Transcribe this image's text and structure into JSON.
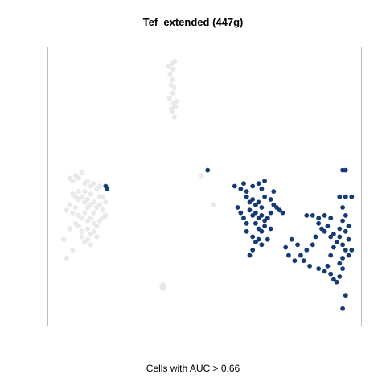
{
  "chart_data": {
    "type": "scatter",
    "title": "Tef_extended (447g)",
    "xlabel": "Cells with AUC > 0.66",
    "ylabel": "",
    "axes_visible": false,
    "grid": false,
    "legend": "none",
    "colors": {
      "high": "#163a72",
      "low": "#e6e6e6"
    },
    "xlim": [
      0,
      100
    ],
    "ylim": [
      0,
      100
    ],
    "series": [
      {
        "group": "low",
        "points": [
          [
            38,
            95
          ],
          [
            39,
            96
          ],
          [
            39.5,
            94
          ],
          [
            40,
            97
          ],
          [
            38.5,
            92
          ],
          [
            39.2,
            90
          ],
          [
            38.8,
            88
          ],
          [
            39.8,
            87
          ],
          [
            39.4,
            85
          ],
          [
            38.3,
            83
          ],
          [
            39.6,
            81
          ],
          [
            38.9,
            79
          ],
          [
            40.2,
            80
          ],
          [
            39.1,
            78
          ],
          [
            39.9,
            76
          ],
          [
            40.5,
            82
          ],
          [
            5,
            53
          ],
          [
            6,
            52
          ],
          [
            7,
            54
          ],
          [
            8,
            53
          ],
          [
            9,
            55
          ],
          [
            10,
            51
          ],
          [
            11,
            52
          ],
          [
            12,
            50
          ],
          [
            13,
            51
          ],
          [
            14,
            49
          ],
          [
            15,
            50
          ],
          [
            6,
            47
          ],
          [
            7,
            46
          ],
          [
            8,
            45
          ],
          [
            9,
            46
          ],
          [
            10,
            44
          ],
          [
            11,
            45
          ],
          [
            12,
            43
          ],
          [
            13,
            44
          ],
          [
            14,
            42
          ],
          [
            15,
            43
          ],
          [
            16,
            41
          ],
          [
            17,
            44
          ],
          [
            5,
            43
          ],
          [
            4,
            41
          ],
          [
            6,
            40
          ],
          [
            8,
            39
          ],
          [
            9,
            38
          ],
          [
            10,
            40
          ],
          [
            11,
            37
          ],
          [
            12,
            38
          ],
          [
            13,
            36
          ],
          [
            14,
            35
          ],
          [
            15,
            37
          ],
          [
            16,
            38
          ],
          [
            7,
            36
          ],
          [
            8,
            35
          ],
          [
            9,
            33
          ],
          [
            11,
            34
          ],
          [
            12,
            32
          ],
          [
            13,
            33
          ],
          [
            14,
            31
          ],
          [
            10,
            29
          ],
          [
            11,
            30
          ],
          [
            12,
            28
          ],
          [
            9,
            31
          ],
          [
            6,
            26
          ],
          [
            4,
            23
          ],
          [
            3,
            30
          ],
          [
            5,
            34
          ],
          [
            7,
            42
          ],
          [
            8,
            48
          ],
          [
            10,
            48
          ],
          [
            12,
            47
          ],
          [
            13,
            40
          ],
          [
            15,
            46
          ],
          [
            16,
            46
          ],
          [
            17,
            39
          ],
          [
            11,
            42
          ],
          [
            36,
            13
          ],
          [
            36.3,
            12.5
          ],
          [
            35.8,
            12
          ],
          [
            36.1,
            11.5
          ],
          [
            53,
            43
          ],
          [
            49,
            54
          ]
        ]
      },
      {
        "group": "high",
        "points": [
          [
            17,
            50
          ],
          [
            17.5,
            49
          ],
          [
            51,
            56
          ],
          [
            60,
            50
          ],
          [
            62,
            49
          ],
          [
            63,
            51
          ],
          [
            64,
            48
          ],
          [
            66,
            50
          ],
          [
            68,
            51
          ],
          [
            70,
            52
          ],
          [
            69,
            49
          ],
          [
            64,
            46
          ],
          [
            65,
            44
          ],
          [
            66,
            45
          ],
          [
            67,
            43
          ],
          [
            68,
            44
          ],
          [
            69,
            42
          ],
          [
            70,
            46
          ],
          [
            72,
            45
          ],
          [
            73,
            43
          ],
          [
            65,
            41
          ],
          [
            66,
            39
          ],
          [
            67,
            40
          ],
          [
            68,
            38
          ],
          [
            69,
            39
          ],
          [
            70,
            37
          ],
          [
            71,
            38
          ],
          [
            72,
            40
          ],
          [
            67,
            36
          ],
          [
            68,
            34
          ],
          [
            69,
            33
          ],
          [
            70,
            35
          ],
          [
            66,
            31
          ],
          [
            67,
            29
          ],
          [
            68,
            30
          ],
          [
            69,
            28
          ],
          [
            62,
            40
          ],
          [
            63,
            38
          ],
          [
            64,
            36
          ],
          [
            61,
            42
          ],
          [
            73,
            48
          ],
          [
            74,
            42
          ],
          [
            75,
            41
          ],
          [
            71,
            30
          ],
          [
            66,
            26
          ],
          [
            64,
            33
          ],
          [
            72,
            34
          ],
          [
            76,
            40
          ],
          [
            65,
            24
          ],
          [
            84,
            39
          ],
          [
            86,
            39
          ],
          [
            88,
            38
          ],
          [
            90,
            39
          ],
          [
            92,
            38
          ],
          [
            88,
            36
          ],
          [
            89,
            34
          ],
          [
            90,
            33
          ],
          [
            91,
            35
          ],
          [
            92,
            31
          ],
          [
            93,
            32
          ],
          [
            87,
            31
          ],
          [
            86,
            28
          ],
          [
            84,
            26
          ],
          [
            82,
            24
          ],
          [
            80,
            22
          ],
          [
            83,
            22
          ],
          [
            85,
            20
          ],
          [
            88,
            19
          ],
          [
            90,
            18
          ],
          [
            91,
            20
          ],
          [
            92,
            17
          ],
          [
            93,
            15
          ],
          [
            94,
            14
          ],
          [
            95,
            16
          ],
          [
            92,
            24
          ],
          [
            93,
            27
          ],
          [
            94,
            29
          ],
          [
            95,
            31
          ],
          [
            96,
            28
          ],
          [
            97,
            26
          ],
          [
            98,
            24
          ],
          [
            99,
            26
          ],
          [
            98,
            30
          ],
          [
            97,
            33
          ],
          [
            98,
            35
          ],
          [
            95,
            34
          ],
          [
            96,
            37
          ],
          [
            97,
            39
          ],
          [
            96,
            42
          ],
          [
            97,
            46
          ],
          [
            99,
            46
          ],
          [
            95,
            46
          ],
          [
            96,
            23
          ],
          [
            95,
            21
          ],
          [
            96,
            19
          ],
          [
            97,
            9
          ],
          [
            96,
            4
          ],
          [
            81,
            28
          ],
          [
            79,
            30
          ],
          [
            77,
            27
          ],
          [
            78,
            24
          ],
          [
            96,
            56
          ],
          [
            97,
            56
          ]
        ]
      }
    ]
  }
}
